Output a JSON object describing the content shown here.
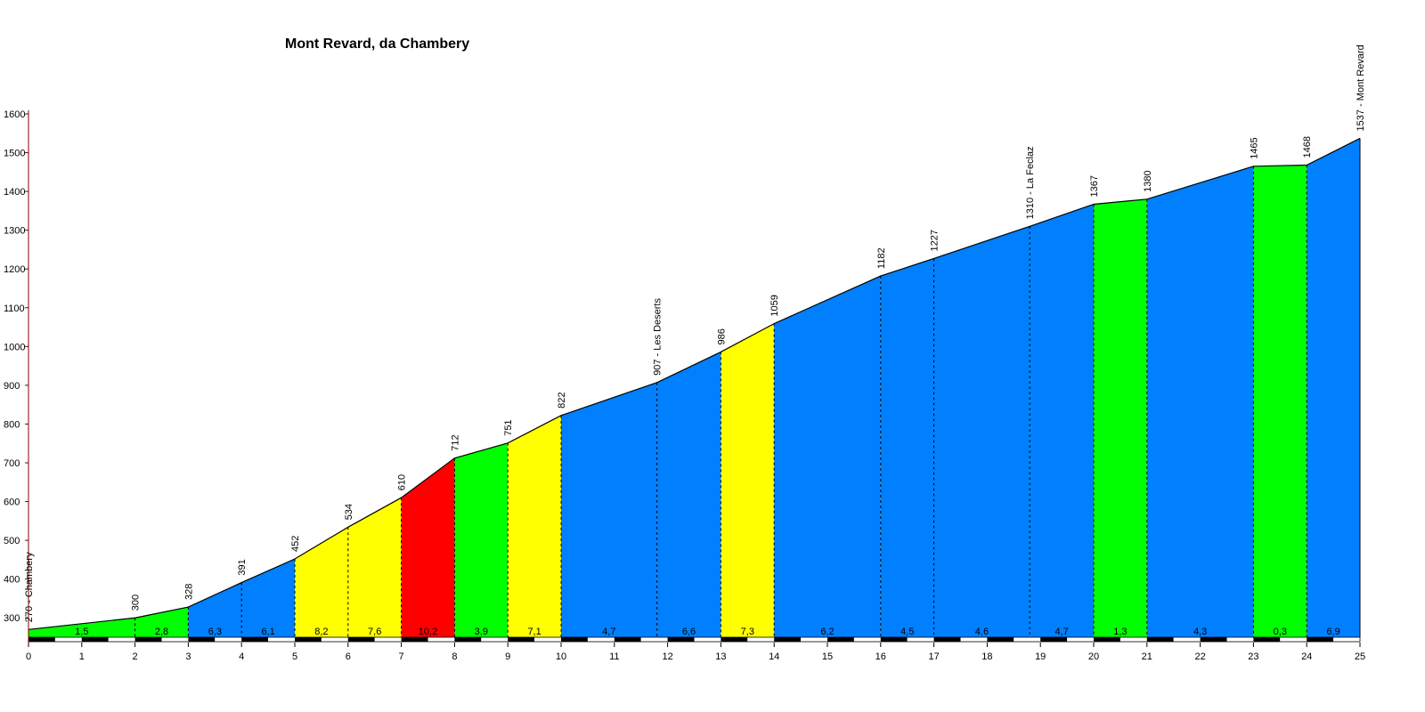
{
  "chart_data": {
    "type": "area",
    "title": "Mont Revard, da Chambery",
    "xlabel": "",
    "ylabel": "",
    "xlim": [
      0,
      25
    ],
    "ylim": [
      250,
      1600
    ],
    "x_ticks": [
      "0",
      "1",
      "2",
      "3",
      "4",
      "5",
      "6",
      "7",
      "8",
      "9",
      "10",
      "11",
      "12",
      "13",
      "14",
      "15",
      "16",
      "17",
      "18",
      "19",
      "20",
      "21",
      "22",
      "23",
      "24",
      "25"
    ],
    "y_ticks": [
      "300",
      "400",
      "500",
      "600",
      "700",
      "800",
      "900",
      "1000",
      "1100",
      "1200",
      "1300",
      "1400",
      "1500",
      "1600"
    ],
    "grid": false,
    "points": [
      {
        "x": 0,
        "y": 270,
        "label": "270 - Chambery"
      },
      {
        "x": 2,
        "y": 300,
        "label": "300"
      },
      {
        "x": 3,
        "y": 328,
        "label": "328"
      },
      {
        "x": 4,
        "y": 391,
        "label": "391"
      },
      {
        "x": 5,
        "y": 452,
        "label": "452"
      },
      {
        "x": 6,
        "y": 534,
        "label": "534"
      },
      {
        "x": 7,
        "y": 610,
        "label": "610"
      },
      {
        "x": 8,
        "y": 712,
        "label": "712"
      },
      {
        "x": 9,
        "y": 751,
        "label": "751"
      },
      {
        "x": 10,
        "y": 822,
        "label": "822"
      },
      {
        "x": 11.8,
        "y": 907,
        "label": "907 - Les Deserts"
      },
      {
        "x": 13,
        "y": 986,
        "label": "986"
      },
      {
        "x": 14,
        "y": 1059,
        "label": "1059"
      },
      {
        "x": 16,
        "y": 1182,
        "label": "1182"
      },
      {
        "x": 17,
        "y": 1227,
        "label": "1227"
      },
      {
        "x": 18.8,
        "y": 1310,
        "label": "1310 - La Feclaz"
      },
      {
        "x": 20,
        "y": 1367,
        "label": "1367"
      },
      {
        "x": 21,
        "y": 1380,
        "label": "1380"
      },
      {
        "x": 23,
        "y": 1465,
        "label": "1465"
      },
      {
        "x": 24,
        "y": 1468,
        "label": "1468"
      },
      {
        "x": 25,
        "y": 1537,
        "label": "1537 - Mont Revard"
      }
    ],
    "segments": [
      {
        "gradient": "1,5",
        "color": "#00ff00"
      },
      {
        "gradient": "2,8",
        "color": "#00ff00"
      },
      {
        "gradient": "6,3",
        "color": "#0080ff"
      },
      {
        "gradient": "6,1",
        "color": "#0080ff"
      },
      {
        "gradient": "8,2",
        "color": "#ffff00"
      },
      {
        "gradient": "7,6",
        "color": "#ffff00"
      },
      {
        "gradient": "10,2",
        "color": "#ff0000"
      },
      {
        "gradient": "3,9",
        "color": "#00ff00"
      },
      {
        "gradient": "7,1",
        "color": "#ffff00"
      },
      {
        "gradient": "4,7",
        "color": "#0080ff"
      },
      {
        "gradient": "6,6",
        "color": "#0080ff"
      },
      {
        "gradient": "7,3",
        "color": "#ffff00"
      },
      {
        "gradient": "6,2",
        "color": "#0080ff"
      },
      {
        "gradient": "4,5",
        "color": "#0080ff"
      },
      {
        "gradient": "4,6",
        "color": "#0080ff"
      },
      {
        "gradient": "4,7",
        "color": "#0080ff"
      },
      {
        "gradient": "1,3",
        "color": "#00ff00"
      },
      {
        "gradient": "4,3",
        "color": "#0080ff"
      },
      {
        "gradient": "0,3",
        "color": "#00ff00"
      },
      {
        "gradient": "6,9",
        "color": "#0080ff"
      }
    ],
    "colors": {
      "axis": "#800000",
      "outline": "#000000",
      "km_band_dark": "#000000",
      "km_band_light": "#ffffff"
    }
  }
}
